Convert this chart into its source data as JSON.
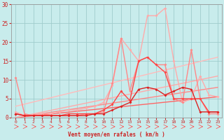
{
  "xlabel": "Vent moyen/en rafales ( km/h )",
  "xlim": [
    -0.5,
    23.5
  ],
  "ylim": [
    0,
    30
  ],
  "yticks": [
    0,
    5,
    10,
    15,
    20,
    25,
    30
  ],
  "xticks": [
    0,
    1,
    2,
    3,
    4,
    5,
    6,
    7,
    8,
    9,
    10,
    11,
    12,
    13,
    14,
    15,
    16,
    17,
    18,
    19,
    20,
    21,
    22,
    23
  ],
  "background_color": "#c8ecec",
  "grid_color": "#a0cccc",
  "lines": [
    {
      "x": [
        0,
        1,
        2,
        3,
        4,
        5,
        6,
        7,
        8,
        9,
        10,
        11,
        12,
        13,
        14,
        15,
        16,
        17,
        18,
        19,
        20,
        21,
        22,
        23
      ],
      "y": [
        1,
        0.5,
        0.5,
        0.5,
        0.5,
        0.5,
        0.5,
        0.5,
        0.5,
        1,
        1,
        2,
        3,
        4,
        7.5,
        8,
        7.5,
        6,
        7,
        8,
        7.5,
        1.5,
        1.5,
        1.5
      ],
      "color": "#dd2222",
      "lw": 1.0,
      "marker": "D",
      "ms": 2.0,
      "zorder": 6,
      "ls": "-"
    },
    {
      "x": [
        0,
        1,
        2,
        3,
        4,
        5,
        6,
        7,
        8,
        9,
        10,
        11,
        12,
        13,
        14,
        15,
        16,
        17,
        18,
        19,
        20,
        21,
        22,
        23
      ],
      "y": [
        1,
        0.5,
        0.5,
        0.5,
        0.5,
        0.5,
        1,
        1,
        1,
        1,
        2,
        3.5,
        7,
        4.5,
        15,
        16,
        14,
        12,
        5,
        5,
        5,
        5,
        1.5,
        1.5
      ],
      "color": "#ff4444",
      "lw": 1.0,
      "marker": "D",
      "ms": 2.0,
      "zorder": 5,
      "ls": "-"
    },
    {
      "x": [
        0,
        1,
        2,
        3,
        4,
        5,
        6,
        7,
        8,
        9,
        10,
        11,
        12,
        13,
        14,
        15,
        16,
        17,
        18,
        19,
        20,
        21,
        22,
        23
      ],
      "y": [
        1.5,
        0.5,
        0.5,
        1,
        1,
        1.5,
        2,
        2,
        2.5,
        3,
        4,
        8.5,
        21,
        18,
        15,
        27,
        27,
        29,
        15,
        4,
        5,
        11,
        6,
        5.5
      ],
      "color": "#ffaaaa",
      "lw": 1.0,
      "marker": "D",
      "ms": 2.0,
      "zorder": 3,
      "ls": "-"
    },
    {
      "x": [
        0,
        1,
        2,
        3,
        4,
        5,
        6,
        7,
        8,
        9,
        10,
        11,
        12,
        13,
        14,
        15,
        16,
        17,
        18,
        19,
        20,
        21,
        22,
        23
      ],
      "y": [
        10.5,
        1,
        0.5,
        0.5,
        0.5,
        0.5,
        0.5,
        0.5,
        1,
        1,
        1.5,
        9,
        21,
        7,
        15,
        16,
        14,
        14,
        5,
        4,
        18,
        5,
        1,
        1
      ],
      "color": "#ff8888",
      "lw": 1.0,
      "marker": "D",
      "ms": 2.0,
      "zorder": 4,
      "ls": "-"
    },
    {
      "x": [
        0,
        23
      ],
      "y": [
        0,
        5.5
      ],
      "color": "#ff6666",
      "lw": 1.0,
      "marker": null,
      "ms": 0,
      "zorder": 2,
      "ls": "-"
    },
    {
      "x": [
        0,
        23
      ],
      "y": [
        0,
        8
      ],
      "color": "#ff8888",
      "lw": 1.0,
      "marker": null,
      "ms": 0,
      "zorder": 2,
      "ls": "-"
    },
    {
      "x": [
        0,
        23
      ],
      "y": [
        0,
        11
      ],
      "color": "#ffaaaa",
      "lw": 1.0,
      "marker": null,
      "ms": 0,
      "zorder": 2,
      "ls": "-"
    },
    {
      "x": [
        0,
        23
      ],
      "y": [
        3,
        16
      ],
      "color": "#ffbbbb",
      "lw": 1.0,
      "marker": null,
      "ms": 0,
      "zorder": 2,
      "ls": "-"
    }
  ]
}
